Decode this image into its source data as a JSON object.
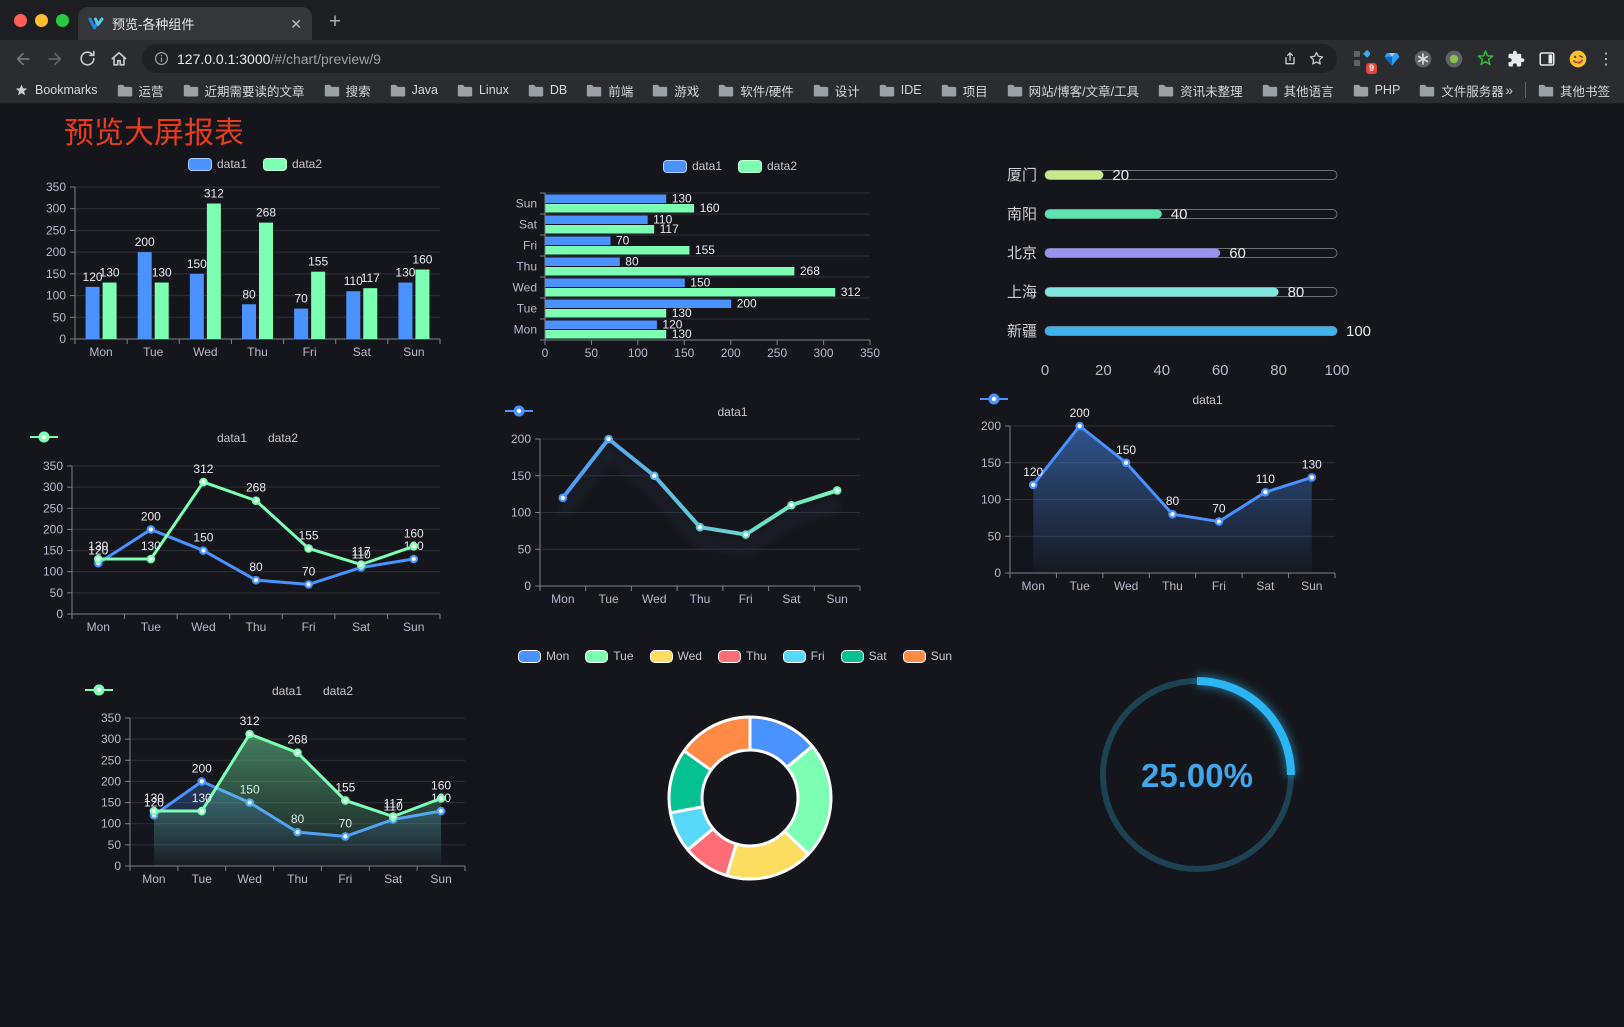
{
  "browser": {
    "tab": {
      "title": "预览-各种组件"
    },
    "icons": {
      "close": "✕",
      "plus": "+",
      "kebab": "⋮",
      "overflow": "»"
    },
    "url": {
      "host": "127.0.0.1:3000",
      "path": "/#/chart/preview/9"
    },
    "extensions_badge": "9",
    "bookmarks_bar": {
      "star_label": "Bookmarks",
      "folders": [
        "运营",
        "近期需要读的文章",
        "搜索",
        "Java",
        "Linux",
        "DB",
        "前端",
        "游戏",
        "软件/硬件",
        "设计",
        "IDE",
        "项目",
        "网站/博客/文章/工具",
        "资讯未整理",
        "其他语言",
        "PHP",
        "文件服务器"
      ],
      "overflow": "»",
      "other": "其他书签"
    }
  },
  "page": {
    "title": "预览大屏报表"
  },
  "colors": {
    "accent_blue": "#4992ff",
    "accent_green": "#7cffb2",
    "title_red": "#ea3b1e"
  },
  "chart_data": [
    {
      "id": "bar-vertical",
      "type": "bar",
      "legend_icon": "rect",
      "legend_position": "top",
      "grid": true,
      "categories": [
        "Mon",
        "Tue",
        "Wed",
        "Thu",
        "Fri",
        "Sat",
        "Sun"
      ],
      "series": [
        {
          "name": "data1",
          "color": "#4992ff",
          "values": [
            120,
            200,
            150,
            80,
            70,
            110,
            130
          ]
        },
        {
          "name": "data2",
          "color": "#7cffb2",
          "values": [
            130,
            130,
            312,
            268,
            155,
            117,
            160
          ]
        }
      ],
      "ylim": [
        0,
        350
      ],
      "ystep": 50,
      "labels": true,
      "xlabel": "",
      "ylabel": ""
    },
    {
      "id": "bar-horizontal",
      "type": "bar-horizontal",
      "legend_icon": "rect",
      "legend_position": "top",
      "grid": true,
      "categories": [
        "Mon",
        "Tue",
        "Wed",
        "Thu",
        "Fri",
        "Sat",
        "Sun"
      ],
      "display_order_top_to_bottom": [
        "Sun",
        "Sat",
        "Fri",
        "Thu",
        "Wed",
        "Tue",
        "Mon"
      ],
      "series": [
        {
          "name": "data1",
          "color": "#4992ff",
          "values": [
            120,
            200,
            150,
            80,
            70,
            110,
            130
          ]
        },
        {
          "name": "data2",
          "color": "#7cffb2",
          "values": [
            130,
            130,
            312,
            268,
            155,
            117,
            160
          ]
        }
      ],
      "xlim": [
        0,
        350
      ],
      "xstep": 50,
      "labels": true
    },
    {
      "id": "progress-bars",
      "type": "progress",
      "max": 100,
      "xticks": [
        0,
        20,
        40,
        60,
        80,
        100
      ],
      "rows": [
        {
          "label": "厦门",
          "value": 20,
          "color": "#c8e88c"
        },
        {
          "label": "南阳",
          "value": 40,
          "color": "#5ee2ae"
        },
        {
          "label": "北京",
          "value": 60,
          "color": "#9a92ef"
        },
        {
          "label": "上海",
          "value": 80,
          "color": "#83e5e0"
        },
        {
          "label": "新疆",
          "value": 100,
          "color": "#3fb2e9"
        }
      ]
    },
    {
      "id": "line-two-series",
      "type": "line",
      "legend_icon": "line",
      "legend_position": "top",
      "grid": true,
      "categories": [
        "Mon",
        "Tue",
        "Wed",
        "Thu",
        "Fri",
        "Sat",
        "Sun"
      ],
      "series": [
        {
          "name": "data1",
          "color": "#4992ff",
          "values": [
            120,
            200,
            150,
            80,
            70,
            110,
            130
          ]
        },
        {
          "name": "data2",
          "color": "#7cffb2",
          "values": [
            130,
            130,
            312,
            268,
            155,
            117,
            160
          ]
        }
      ],
      "ylim": [
        0,
        350
      ],
      "ystep": 50,
      "labels": true
    },
    {
      "id": "line-gradient",
      "type": "line",
      "legend_icon": "line",
      "legend_position": "top",
      "grid": true,
      "shadow": true,
      "categories": [
        "Mon",
        "Tue",
        "Wed",
        "Thu",
        "Fri",
        "Sat",
        "Sun"
      ],
      "series": [
        {
          "name": "data1",
          "gradient": [
            "#4992ff",
            "#7cffb2"
          ],
          "values": [
            120,
            200,
            150,
            80,
            70,
            110,
            130
          ]
        }
      ],
      "ylim": [
        0,
        200
      ],
      "ystep": 50,
      "labels": false
    },
    {
      "id": "line-area",
      "type": "line",
      "legend_icon": "line",
      "legend_position": "top",
      "grid": true,
      "categories": [
        "Mon",
        "Tue",
        "Wed",
        "Thu",
        "Fri",
        "Sat",
        "Sun"
      ],
      "series": [
        {
          "name": "data1",
          "color": "#4992ff",
          "area": true,
          "values": [
            120,
            200,
            150,
            80,
            70,
            110,
            130
          ]
        }
      ],
      "ylim": [
        0,
        200
      ],
      "ystep": 50,
      "labels": true
    },
    {
      "id": "area-two-series",
      "type": "line",
      "legend_icon": "line",
      "legend_position": "top",
      "grid": true,
      "categories": [
        "Mon",
        "Tue",
        "Wed",
        "Thu",
        "Fri",
        "Sat",
        "Sun"
      ],
      "series": [
        {
          "name": "data1",
          "color": "#4992ff",
          "area": true,
          "values": [
            120,
            200,
            150,
            80,
            70,
            110,
            130
          ]
        },
        {
          "name": "data2",
          "color": "#7cffb2",
          "area": true,
          "values": [
            130,
            130,
            312,
            268,
            155,
            117,
            160
          ]
        }
      ],
      "ylim": [
        0,
        350
      ],
      "ystep": 50,
      "labels": true
    },
    {
      "id": "donut",
      "type": "pie",
      "legend_icon": "pie",
      "legend_position": "top",
      "start_angle_deg_from_top": 0,
      "clockwise": true,
      "items": [
        {
          "label": "Mon",
          "value": 120,
          "color": "#4992ff"
        },
        {
          "label": "Tue",
          "value": 200,
          "color": "#7cffb2"
        },
        {
          "label": "Wed",
          "value": 150,
          "color": "#fddd60"
        },
        {
          "label": "Thu",
          "value": 80,
          "color": "#ff6e76"
        },
        {
          "label": "Fri",
          "value": 70,
          "color": "#58d9f9"
        },
        {
          "label": "Sat",
          "value": 110,
          "color": "#05c091"
        },
        {
          "label": "Sun",
          "value": 130,
          "color": "#ff8a45"
        }
      ]
    },
    {
      "id": "gauge",
      "type": "gauge",
      "percent": 25,
      "label": "25.00%",
      "arc_color": "#2ab6f4",
      "track_color": "#1c4254",
      "text_color": "#41a6ea"
    }
  ]
}
